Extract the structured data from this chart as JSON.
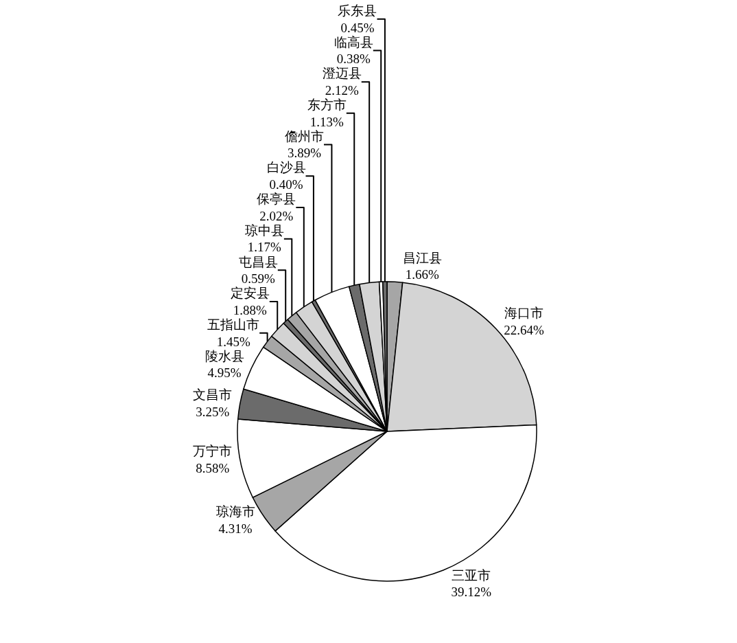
{
  "chart_data": {
    "type": "pie",
    "categories": [
      "昌江县",
      "海口市",
      "三亚市",
      "琼海市",
      "万宁市",
      "文昌市",
      "陵水县",
      "五指山市",
      "定安县",
      "屯昌县",
      "琼中县",
      "保亭县",
      "白沙县",
      "儋州市",
      "东方市",
      "澄迈县",
      "临高县",
      "乐东县"
    ],
    "values": [
      1.66,
      22.64,
      39.12,
      4.31,
      8.58,
      3.25,
      4.95,
      1.45,
      1.88,
      0.59,
      1.17,
      2.02,
      0.4,
      3.89,
      1.13,
      2.12,
      0.38,
      0.45
    ],
    "value_labels": [
      "1.66%",
      "22.64%",
      "39.12%",
      "4.31%",
      "8.58%",
      "3.25%",
      "4.95%",
      "1.45%",
      "1.88%",
      "0.59%",
      "1.17%",
      "2.02%",
      "0.40%",
      "3.89%",
      "1.13%",
      "2.12%",
      "0.38%",
      "0.45%"
    ],
    "colors": [
      "#a6a6a6",
      "#d4d4d4",
      "#ffffff",
      "#a6a6a6",
      "#ffffff",
      "#6b6b6b",
      "#ffffff",
      "#a6a6a6",
      "#d4d4d4",
      "#6b6b6b",
      "#a6a6a6",
      "#d4d4d4",
      "#6b6b6b",
      "#ffffff",
      "#6b6b6b",
      "#d4d4d4",
      "#ffffff",
      "#6b6b6b"
    ],
    "legend": false
  }
}
